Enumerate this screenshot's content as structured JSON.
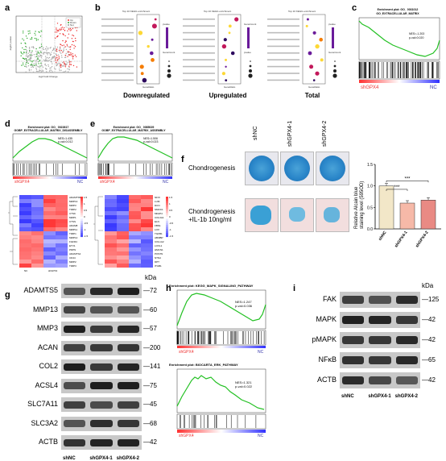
{
  "panel_letters": [
    "a",
    "b",
    "c",
    "d",
    "e",
    "f",
    "g",
    "h",
    "i"
  ],
  "panel_a": {
    "x_axis_label": "log2 Fold Change",
    "y_axis_label": "-log10 pvalue",
    "legend": [
      "Up",
      "Down",
      "Not"
    ]
  },
  "panel_b": {
    "subplots": [
      {
        "title": "Top 10 KEGG enrichment",
        "caption": "Downregulated",
        "xlabel": "GeneRatio"
      },
      {
        "title": "Top 10 KEGG enrichment",
        "caption": "Upregulated",
        "xlabel": "GeneRatio"
      },
      {
        "title": "Top 10 KEGG enrichment",
        "caption": "Total",
        "xlabel": "GeneRatio"
      }
    ],
    "legend_pvalue": "pvalue",
    "legend_count": "GeneCount"
  },
  "panel_c": {
    "title_line1": "Enrichment plot: GO_ 0031012",
    "title_line2": "GO_EXTRACELLULAR_MATRIX",
    "nes": "NES=-1.203",
    "pval": "p-val=0.020",
    "left_label": "shGPX4",
    "right_label": "NC"
  },
  "panel_d": {
    "title_line1": "Enrichment plot: GO_ 0022617",
    "title_line2": "GOBP_EXTRACELLULAR_MATRIX_DISASSEMBLY",
    "nes": "NES=1.435",
    "pval": "p-val=0.012",
    "left_label": "shGPX4",
    "right_label": "NC",
    "genes": [
      "ADAMTS5",
      "MMP13",
      "MMP3",
      "TIMP2",
      "CTSK",
      "MMP1",
      "CTSS",
      "ADAM8",
      "MMP11",
      "TIMP1",
      "MMP12",
      "FGFR4",
      "ETV1",
      "PDPN",
      "ADAMTS4",
      "CD44",
      "MMP2",
      "TIMP3"
    ],
    "scale_ticks": [
      "1.5",
      "1",
      "0.5",
      "0",
      "-0.5",
      "-1",
      "-1.5"
    ],
    "col_labels": [
      "NC",
      "shGPX4"
    ]
  },
  "panel_e": {
    "title_line1": "Enrichment plot: GO_ 0085029",
    "title_line2": "GOBP_EXTRACELLULAR_MATRIX_ASSEMBLY",
    "nes": "NES=1.506",
    "pval": "p-val=0.023",
    "left_label": "shGPX4",
    "right_label": "NC",
    "genes": [
      "NFIX",
      "LUM",
      "DCN",
      "SMOC1",
      "MFAP4",
      "COL3A1",
      "ELN",
      "FBN1",
      "LOX",
      "TGFB1",
      "ABI3BP",
      "COL1A2",
      "LOXL1",
      "HMCN1",
      "POSTN",
      "NTN4",
      "DPT",
      "ITGB1"
    ],
    "scale_ticks": [
      "1.5",
      "1",
      "0.5",
      "0",
      "-0.5",
      "-1",
      "-1.5"
    ]
  },
  "panel_f": {
    "columns": [
      "shNC",
      "shGPX4-1",
      "shGPX4-2"
    ],
    "row1": "Chondrogenesis",
    "row2_line1": "Chondrogenesis",
    "row2_line2": "+IL-1b 10ng/ml",
    "chart_data": {
      "type": "bar",
      "categories": [
        "shNC",
        "shGPX4-1",
        "shGPX4-2"
      ],
      "values": [
        1.0,
        0.6,
        0.67
      ],
      "ylabel_line1": "Relative Alcain blue",
      "ylabel_line2": "staining level (595OD)",
      "ylim": [
        0,
        1.5
      ],
      "yticks": [
        "0.0",
        "0.5",
        "1.0",
        "1.5"
      ],
      "significance": [
        "***",
        "***"
      ],
      "colors": [
        "#f2e7c8",
        "#f6b9a8",
        "#e98a84"
      ]
    }
  },
  "panel_g": {
    "kda_header": "kDa",
    "bands": [
      {
        "name": "ADAMTS5",
        "kda": "72"
      },
      {
        "name": "MMP13",
        "kda": "60"
      },
      {
        "name": "MMP3",
        "kda": "57"
      },
      {
        "name": "ACAN",
        "kda": "200"
      },
      {
        "name": "COL2",
        "kda": "141"
      },
      {
        "name": "ACSL4",
        "kda": "75"
      },
      {
        "name": "SLC7A11",
        "kda": "45"
      },
      {
        "name": "SLC3A2",
        "kda": "68"
      },
      {
        "name": "ACTB",
        "kda": "42"
      }
    ],
    "lanes": [
      "shNC",
      "shGPX4-1",
      "shGPX4-2"
    ]
  },
  "panel_h": {
    "plot1": {
      "title": "Enrichment plot: KEGG_MAPK_SIGNALING_PATHWAY",
      "nes": "NES=1.247",
      "pval": "p-val=0.036",
      "left_label": "shGPX4",
      "right_label": "NC"
    },
    "plot2": {
      "title": "Enrichment plot: BIOCARTA_ERK_PATHWAY",
      "nes": "NES=1.321",
      "pval": "p-val=0.022",
      "left_label": "shGPX4",
      "right_label": "NC"
    }
  },
  "panel_i": {
    "kda_header": "kDa",
    "bands": [
      {
        "name": "FAK",
        "kda": "125"
      },
      {
        "name": "MAPK",
        "kda": "42"
      },
      {
        "name": "pMAPK",
        "kda": "42"
      },
      {
        "name": "NFκB",
        "kda": "65"
      },
      {
        "name": "ACTB",
        "kda": "42"
      }
    ],
    "lanes": [
      "shNC",
      "shGPX4-1",
      "shGPX4-2"
    ]
  }
}
